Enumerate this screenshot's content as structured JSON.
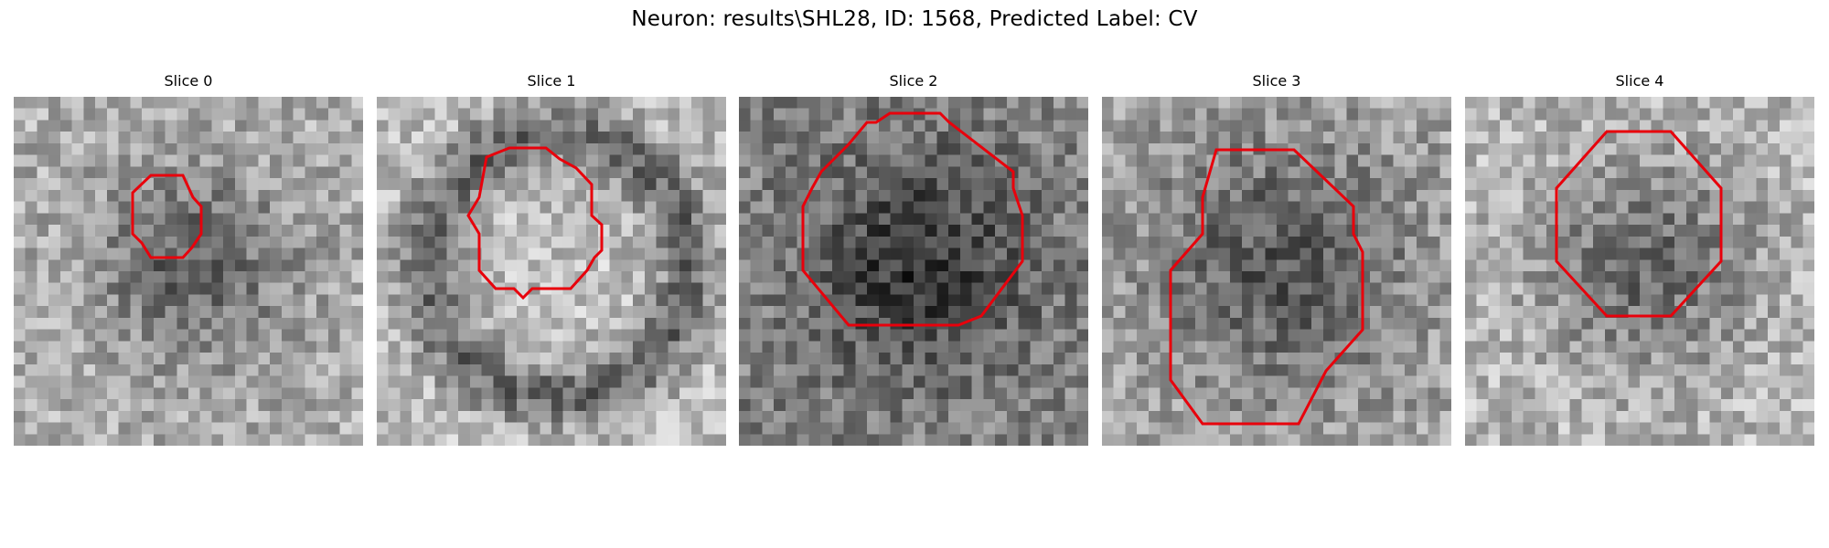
{
  "title": "Neuron: results\\SHL28, ID: 1568, Predicted Label: CV",
  "outline_color": "#e8000b",
  "slices": [
    {
      "label": "Slice 0",
      "seed": 11,
      "base": 175,
      "blob": 0.55,
      "ring": false
    },
    {
      "label": "Slice 1",
      "seed": 23,
      "base": 190,
      "blob": 0.35,
      "ring": true
    },
    {
      "label": "Slice 2",
      "seed": 37,
      "base": 130,
      "blob": 0.6,
      "ring": false
    },
    {
      "label": "Slice 3",
      "seed": 51,
      "base": 165,
      "blob": 0.7,
      "ring": false
    },
    {
      "label": "Slice 4",
      "seed": 67,
      "base": 185,
      "blob": 0.6,
      "ring": false
    }
  ]
}
